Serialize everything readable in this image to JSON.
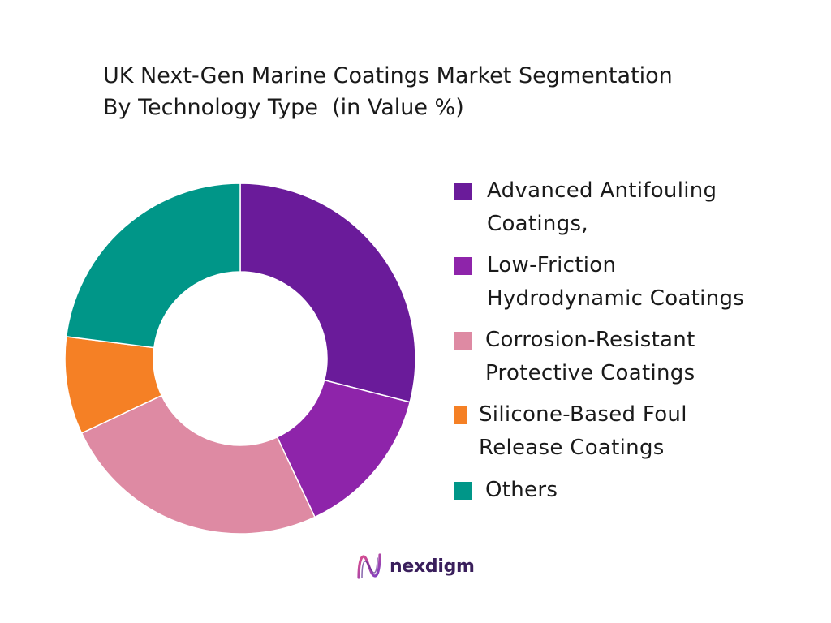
{
  "chart_data": {
    "type": "pie",
    "style": "donut",
    "title_lines": [
      "UK Next-Gen Marine Coatings Market Segmentation",
      "By Technology Type  (in Value %)"
    ],
    "legend_position": "right",
    "slices": [
      {
        "label": "Advanced Antifouling\nCoatings,",
        "value": 29,
        "color": "#6a1b9a"
      },
      {
        "label": "Low-Friction\nHydrodynamic Coatings",
        "value": 14,
        "color": "#8e24aa"
      },
      {
        "label": "Corrosion-Resistant\nProtective Coatings",
        "value": 25,
        "color": "#de8aa3"
      },
      {
        "label": "Silicone-Based Foul\nRelease Coatings",
        "value": 9,
        "color": "#f58025"
      },
      {
        "label": "Others",
        "value": 23,
        "color": "#009688"
      }
    ]
  },
  "brand": {
    "name": "nexdigm",
    "logo_icon": "nexdigm-logo-icon",
    "color": "#3a1f5c"
  }
}
